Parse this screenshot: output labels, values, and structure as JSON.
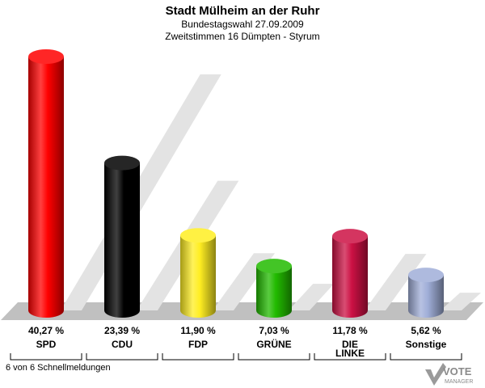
{
  "header": {
    "title": "Stadt Mülheim an der Ruhr",
    "subtitle1": "Bundestagswahl 27.09.2009",
    "subtitle2": "Zweitstimmen 16 Dümpten - Styrum"
  },
  "footer": {
    "note": "6 von 6 Schnellmeldungen",
    "logo_text": "VOTE",
    "logo_subtext": "MANAGER"
  },
  "chart_data": {
    "type": "bar",
    "title": "Stadt Mülheim an der Ruhr",
    "categories": [
      "SPD",
      "CDU",
      "FDP",
      "GRÜNE",
      "DIE LINKE",
      "Sonstige"
    ],
    "values": [
      40.27,
      23.39,
      11.9,
      7.03,
      11.78,
      5.62
    ],
    "value_labels": [
      "40,27 %",
      "23,39 %",
      "11,90 %",
      "7,03 %",
      "11,78 %",
      "5,62 %"
    ],
    "colors": [
      "#ff0000",
      "#000000",
      "#ffee22",
      "#22bb00",
      "#cc1144",
      "#a0aed8"
    ],
    "ylim": [
      0,
      40.27
    ],
    "grid": false,
    "legend": "none"
  }
}
